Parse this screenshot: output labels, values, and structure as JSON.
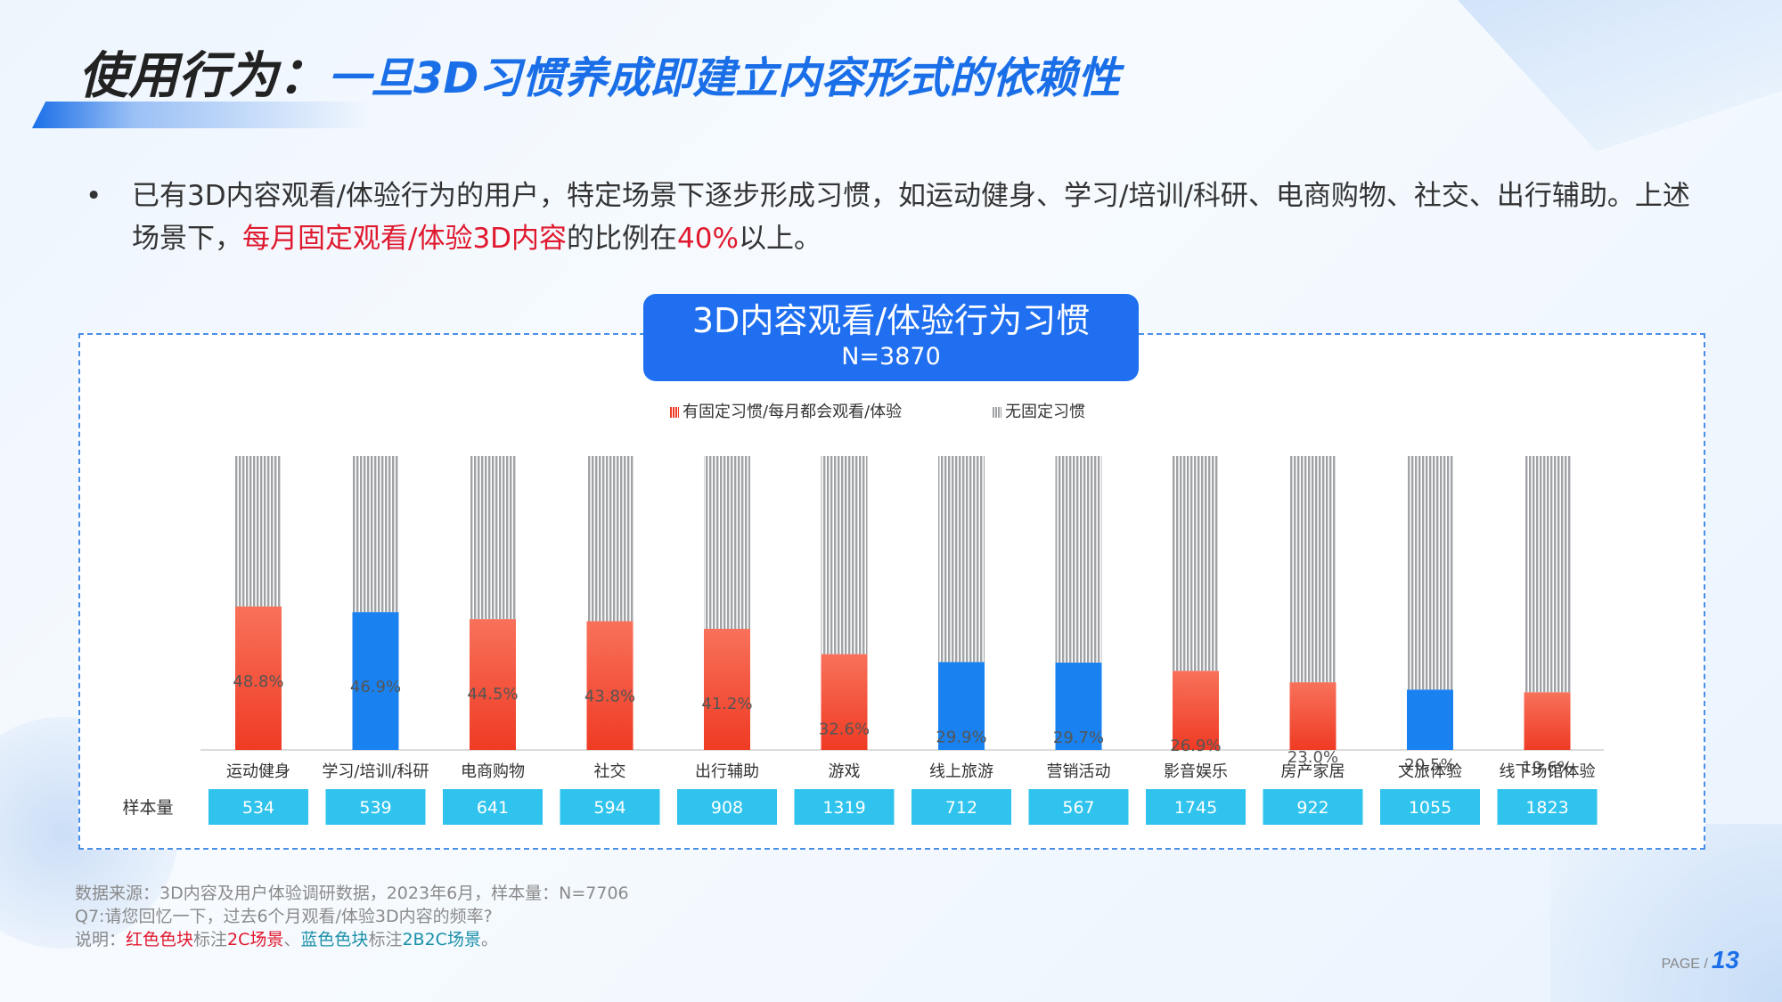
{
  "title": {
    "part1": "使用行为：",
    "part2": "一旦3D习惯养成即建立内容形式的依赖性"
  },
  "bullet": {
    "dot": "•",
    "text_a": "已有3D内容观看/体验行为的用户，特定场景下逐步形成习惯，如运动健身、学习/培训/科研、电商购物、社交、出行辅助。上述场景下，",
    "highlight1": "每月固定观看/体验3D内容",
    "text_b": "的比例在",
    "highlight2": "40%",
    "text_c": "以上。"
  },
  "chart_title": {
    "line1": "3D内容观看/体验行为习惯",
    "line2": "N=3870"
  },
  "colors": {
    "red_top": "#f8715a",
    "red_bottom": "#ef3b24",
    "blue": "#1a82f0",
    "gray": "#a0a2a6",
    "sample_box": "#2fc3ee"
  },
  "chart_data": {
    "type": "bar",
    "stacked": true,
    "categories": [
      "运动健身",
      "学习/培训/科研",
      "电商购物",
      "社交",
      "出行辅助",
      "游戏",
      "线上旅游",
      "营销活动",
      "影音娱乐",
      "房产家居",
      "文旅体验",
      "线下场馆体验"
    ],
    "series": [
      {
        "name": "有固定习惯/每月都会观看/体验",
        "values": [
          48.8,
          46.9,
          44.5,
          43.8,
          41.2,
          32.6,
          29.9,
          29.7,
          26.9,
          23.0,
          20.5,
          19.6
        ]
      },
      {
        "name": "无固定习惯",
        "values": [
          51.2,
          53.1,
          55.5,
          56.2,
          58.8,
          67.4,
          70.1,
          70.3,
          73.1,
          77.0,
          79.5,
          80.4
        ]
      }
    ],
    "labels": [
      "48.8%",
      "46.9%",
      "44.5%",
      "43.8%",
      "41.2%",
      "32.6%",
      "29.9%",
      "29.7%",
      "26.9%",
      "23.0%",
      "20.5%",
      "19.6%"
    ],
    "scene_type": [
      "2C",
      "2B2C",
      "2C",
      "2C",
      "2C",
      "2C",
      "2B2C",
      "2B2C",
      "2C",
      "2C",
      "2B2C",
      "2C"
    ],
    "sample_label": "样本量",
    "sample_sizes": [
      "534",
      "539",
      "641",
      "594",
      "908",
      "1319",
      "712",
      "567",
      "1745",
      "922",
      "1055",
      "1823"
    ],
    "ylim": [
      0,
      100
    ],
    "legend_position": "top-center"
  },
  "footer": {
    "line1": "数据来源：3D内容及用户体验调研数据，2023年6月，样本量：N=7706",
    "line2": "Q7:请您回忆一下，过去6个月观看/体验3D内容的频率?",
    "line3_a": "说明：",
    "line3_red": "红色色块",
    "line3_b": "标注",
    "line3_red2": "2C场景",
    "line3_c": "、",
    "line3_teal": "蓝色色块",
    "line3_d": "标注",
    "line3_teal2": "2B2C场景",
    "line3_e": "。"
  },
  "page": {
    "label": "PAGE /",
    "number": "13"
  }
}
